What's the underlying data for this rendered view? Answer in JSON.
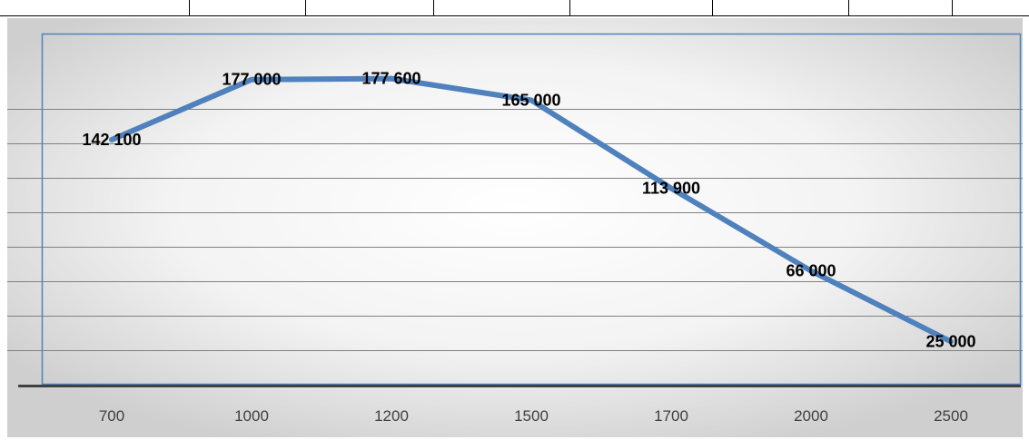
{
  "chart_data": {
    "type": "line",
    "categories": [
      "700",
      "1000",
      "1200",
      "1500",
      "1700",
      "2000",
      "2500"
    ],
    "series": [
      {
        "values": [
          142100,
          177000,
          177600,
          165000,
          113900,
          66000,
          25000
        ],
        "color": "#4F81BD"
      }
    ],
    "data_labels": [
      "142 100",
      "177 000",
      "177 600",
      "165 000",
      "113 900",
      "66 000",
      "25 000"
    ],
    "title": "",
    "xlabel": "",
    "ylabel": "",
    "ylim": [
      0,
      200000
    ],
    "grid": true,
    "legend": "none",
    "colors": {
      "plot_border": "#4F81BD",
      "gridline": "#808080",
      "axis_line": "#404040",
      "background_center": "#ffffff",
      "background_edge": "#cfcfcf"
    }
  }
}
